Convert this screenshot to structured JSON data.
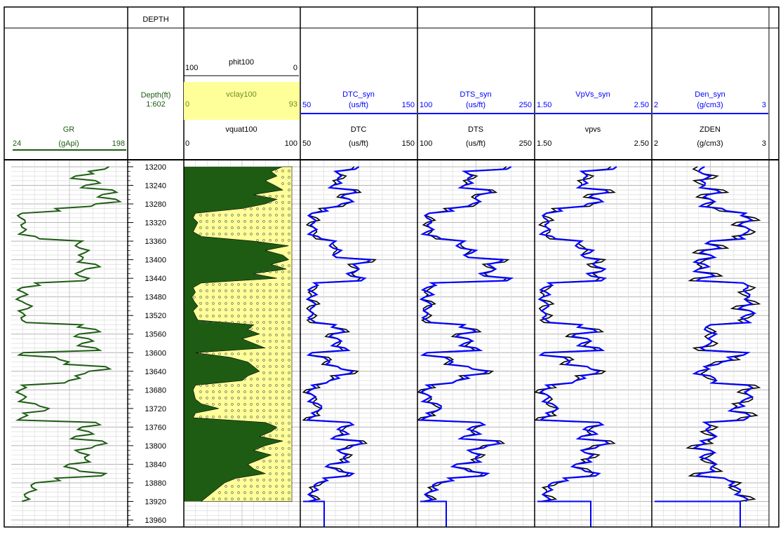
{
  "chart_data": {
    "type": "line",
    "title": "",
    "depth_track": {
      "header": "DEPTH",
      "label": "Depth(ft)",
      "scale": "1:602",
      "ticks": [
        13200,
        13240,
        13280,
        13320,
        13360,
        13400,
        13440,
        13480,
        13520,
        13560,
        13600,
        13640,
        13680,
        13720,
        13760,
        13800,
        13840,
        13880,
        13920,
        13960
      ]
    },
    "depth_range": [
      13185,
      13975
    ],
    "colors": {
      "green": "#1e5c14",
      "blue": "#0000ff",
      "black": "#000000",
      "yellow": "#ffff99",
      "olive": "#6b8e23"
    },
    "curves": {
      "gr": {
        "name": "GR",
        "unit": "(gApi)",
        "min": "24",
        "max": "198",
        "range": [
          24,
          198
        ],
        "color": "#1e5c14"
      },
      "phit": {
        "name": "phit100",
        "min": "100",
        "max": "0"
      },
      "vclay": {
        "name": "vclay100",
        "min": "0",
        "max": "93",
        "range": [
          0,
          93
        ]
      },
      "vquat": {
        "name": "vquat100",
        "min": "0",
        "max": "100"
      },
      "dtc_syn": {
        "name": "DTC_syn",
        "unit": "(us/ft)",
        "min": "50",
        "max": "150",
        "range": [
          50,
          150
        ],
        "color": "#0000ff"
      },
      "dtc": {
        "name": "DTC",
        "unit": "(us/ft)",
        "min": "50",
        "max": "150",
        "color": "#000000"
      },
      "dts_syn": {
        "name": "DTS_syn",
        "unit": "(us/ft)",
        "min": "100",
        "max": "250",
        "range": [
          100,
          250
        ],
        "color": "#0000ff"
      },
      "dts": {
        "name": "DTS",
        "unit": "(us/ft)",
        "min": "100",
        "max": "250",
        "color": "#000000"
      },
      "vpvs_syn": {
        "name": "VpVs_syn",
        "unit": "",
        "min": "1.50",
        "max": "2.50",
        "range": [
          1.5,
          2.5
        ],
        "color": "#0000ff"
      },
      "vpvs": {
        "name": "vpvs",
        "unit": "",
        "min": "1.50",
        "max": "2.50",
        "color": "#000000"
      },
      "den_syn": {
        "name": "Den_syn",
        "unit": "(g/cm3)",
        "min": "2",
        "max": "3",
        "range": [
          2,
          3
        ],
        "color": "#0000ff"
      },
      "zden": {
        "name": "ZDEN",
        "unit": "(g/cm3)",
        "min": "2",
        "max": "3",
        "color": "#000000"
      }
    },
    "data": {
      "depth": [
        13200,
        13210,
        13220,
        13230,
        13240,
        13250,
        13260,
        13270,
        13280,
        13290,
        13300,
        13310,
        13320,
        13330,
        13340,
        13350,
        13360,
        13370,
        13380,
        13390,
        13400,
        13410,
        13420,
        13430,
        13440,
        13450,
        13460,
        13470,
        13480,
        13490,
        13500,
        13510,
        13520,
        13530,
        13540,
        13550,
        13560,
        13570,
        13580,
        13590,
        13600,
        13610,
        13620,
        13630,
        13640,
        13650,
        13660,
        13670,
        13680,
        13690,
        13700,
        13710,
        13720,
        13730,
        13740,
        13750,
        13760,
        13770,
        13780,
        13790,
        13800,
        13810,
        13820,
        13830,
        13840,
        13850,
        13860,
        13870,
        13880,
        13890,
        13900,
        13910,
        13920
      ],
      "gr": [
        170,
        140,
        120,
        150,
        135,
        175,
        160,
        180,
        150,
        90,
        40,
        38,
        45,
        40,
        42,
        60,
        130,
        120,
        140,
        125,
        130,
        150,
        135,
        120,
        140,
        60,
        40,
        42,
        38,
        40,
        55,
        35,
        45,
        40,
        130,
        150,
        125,
        140,
        130,
        150,
        42,
        90,
        110,
        165,
        140,
        120,
        110,
        40,
        38,
        40,
        42,
        60,
        80,
        42,
        40,
        150,
        130,
        140,
        120,
        160,
        150,
        120,
        140,
        135,
        110,
        120,
        165,
        90,
        60,
        55,
        50,
        45,
        40
      ],
      "vclay": [
        85,
        75,
        80,
        70,
        78,
        85,
        60,
        80,
        70,
        50,
        10,
        8,
        12,
        10,
        8,
        15,
        60,
        90,
        70,
        85,
        90,
        75,
        88,
        60,
        80,
        15,
        8,
        10,
        7,
        9,
        12,
        8,
        10,
        12,
        60,
        55,
        65,
        50,
        60,
        70,
        10,
        40,
        55,
        60,
        65,
        55,
        50,
        10,
        8,
        9,
        10,
        15,
        30,
        10,
        8,
        70,
        80,
        75,
        65,
        85,
        70,
        60,
        75,
        65,
        55,
        60,
        70,
        45,
        35,
        30,
        25,
        20,
        15
      ],
      "dtc_syn": [
        100,
        80,
        85,
        82,
        78,
        95,
        88,
        92,
        85,
        70,
        60,
        60,
        62,
        61,
        60,
        65,
        80,
        75,
        85,
        78,
        110,
        95,
        100,
        90,
        105,
        62,
        60,
        61,
        59,
        60,
        62,
        58,
        60,
        60,
        80,
        85,
        78,
        82,
        80,
        88,
        60,
        70,
        75,
        82,
        95,
        80,
        75,
        60,
        59,
        60,
        60,
        65,
        68,
        60,
        59,
        92,
        85,
        88,
        80,
        100,
        95,
        82,
        90,
        88,
        75,
        80,
        95,
        70,
        65,
        62,
        60,
        60,
        60
      ],
      "dts_syn": [
        220,
        160,
        170,
        165,
        160,
        190,
        180,
        175,
        170,
        140,
        115,
        112,
        118,
        115,
        112,
        125,
        160,
        150,
        175,
        160,
        210,
        190,
        200,
        180,
        220,
        118,
        112,
        115,
        110,
        112,
        118,
        108,
        112,
        112,
        160,
        170,
        155,
        165,
        160,
        175,
        112,
        135,
        145,
        165,
        190,
        160,
        150,
        112,
        110,
        112,
        112,
        125,
        130,
        112,
        110,
        180,
        170,
        175,
        160,
        200,
        190,
        165,
        180,
        175,
        150,
        160,
        190,
        140,
        125,
        120,
        115,
        113,
        112
      ],
      "vpvs_syn": [
        2.2,
        1.9,
        1.95,
        1.92,
        1.9,
        2.1,
        2.0,
        2.05,
        1.95,
        1.7,
        1.6,
        1.58,
        1.62,
        1.6,
        1.58,
        1.65,
        1.9,
        1.85,
        2.0,
        1.9,
        2.05,
        2.0,
        2.1,
        1.95,
        2.1,
        1.62,
        1.58,
        1.6,
        1.57,
        1.58,
        1.62,
        1.56,
        1.6,
        1.6,
        1.9,
        2.0,
        1.85,
        1.95,
        1.9,
        2.05,
        1.58,
        1.75,
        1.8,
        1.95,
        2.05,
        1.9,
        1.85,
        1.6,
        1.58,
        1.6,
        1.6,
        1.65,
        1.7,
        1.6,
        1.58,
        2.05,
        1.95,
        2.0,
        1.9,
        2.1,
        2.05,
        1.9,
        2.0,
        1.95,
        1.85,
        1.9,
        2.05,
        1.75,
        1.65,
        1.62,
        1.6,
        1.6,
        1.6
      ],
      "den_syn": [
        2.45,
        2.4,
        2.5,
        2.42,
        2.45,
        2.55,
        2.48,
        2.5,
        2.45,
        2.6,
        2.8,
        2.82,
        2.78,
        2.8,
        2.82,
        2.75,
        2.5,
        2.55,
        2.45,
        2.5,
        2.4,
        2.45,
        2.4,
        2.5,
        2.42,
        2.78,
        2.82,
        2.8,
        2.83,
        2.82,
        2.78,
        2.84,
        2.8,
        2.8,
        2.5,
        2.45,
        2.55,
        2.48,
        2.5,
        2.42,
        2.82,
        2.65,
        2.6,
        2.45,
        2.4,
        2.5,
        2.55,
        2.82,
        2.83,
        2.82,
        2.8,
        2.75,
        2.7,
        2.8,
        2.82,
        2.45,
        2.5,
        2.48,
        2.55,
        2.42,
        2.4,
        2.5,
        2.45,
        2.48,
        2.55,
        2.5,
        2.42,
        2.62,
        2.7,
        2.72,
        2.75,
        2.78,
        2.8
      ]
    }
  }
}
